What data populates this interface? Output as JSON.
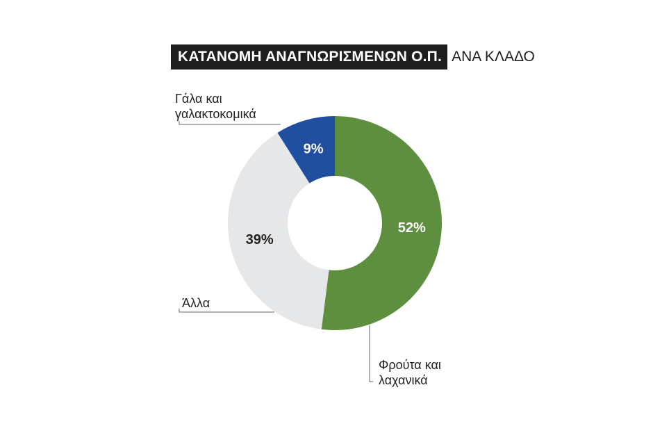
{
  "title": {
    "main": "ΚΑΤΑΝΟΜΗ ΑΝΑΓΝΩΡΙΣΜΕΝΩΝ Ο.Π.",
    "sub": "ΑΝΑ ΚΛΑΔΟ"
  },
  "chart_data": {
    "type": "pie",
    "variant": "donut",
    "title": "ΚΑΤΑΝΟΜΗ ΑΝΑΓΝΩΡΙΣΜΕΝΩΝ Ο.Π. ΑΝΑ ΚΛΑΔΟ",
    "categories": [
      "Φρούτα και λαχανικά",
      "Άλλα",
      "Γάλα και γαλακτοκομικά"
    ],
    "values": [
      52,
      39,
      9
    ],
    "data_labels": [
      "52%",
      "39%",
      "9%"
    ],
    "colors": [
      "#5e8f3e",
      "#e6e7e9",
      "#1f4f9e"
    ],
    "label_colors": [
      "#ffffff",
      "#222222",
      "#ffffff"
    ]
  },
  "callouts": {
    "dairy": {
      "line1": "Γάλα και",
      "line2": "γαλακτοκομικά"
    },
    "other": {
      "line1": "Άλλα"
    },
    "fruit": {
      "line1": "Φρούτα και",
      "line2": "λαχανικά"
    }
  }
}
